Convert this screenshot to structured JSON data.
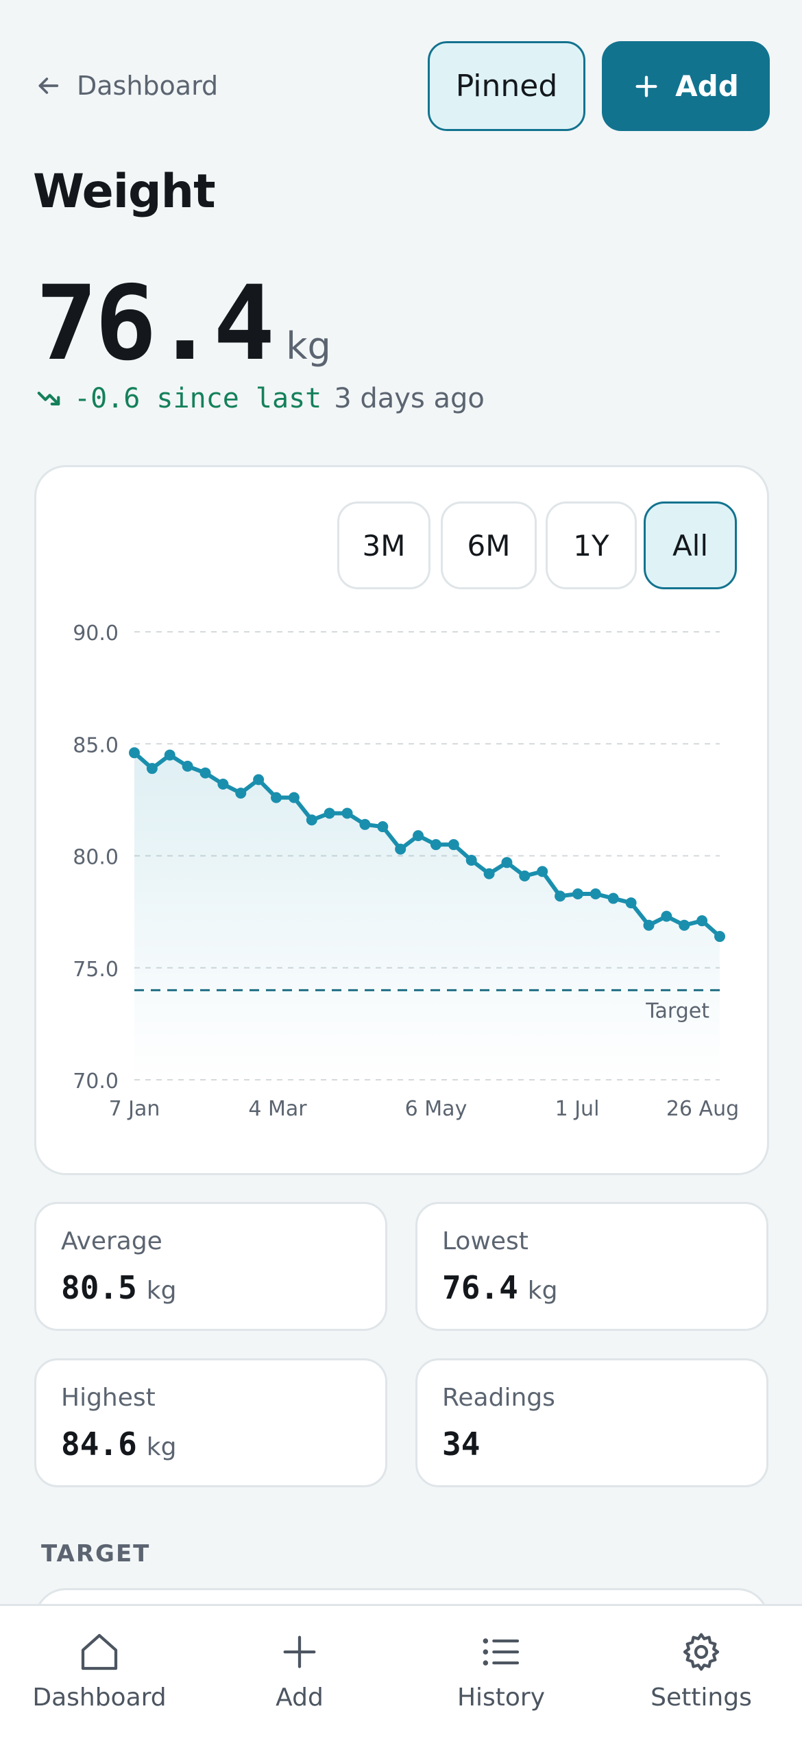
{
  "header": {
    "back_label": "Dashboard",
    "pinned_label": "Pinned",
    "add_label": "Add"
  },
  "page_title": "Weight",
  "current": {
    "value": "76.4",
    "unit": "kg",
    "delta": "-0.6 since last",
    "delta_time": "3 days ago"
  },
  "ranges": [
    {
      "label": "3M",
      "active": false
    },
    {
      "label": "6M",
      "active": false
    },
    {
      "label": "1Y",
      "active": false
    },
    {
      "label": "All",
      "active": true
    }
  ],
  "chart_data": {
    "type": "area",
    "x_ticks": [
      "7 Jan",
      "4 Mar",
      "6 May",
      "1 Jul",
      "26 Aug"
    ],
    "y_ticks": [
      "70.0",
      "75.0",
      "80.0",
      "85.0",
      "90.0"
    ],
    "ylim": [
      70,
      90
    ],
    "grid": true,
    "target": {
      "value": 74.0,
      "label": "Target"
    },
    "series": [
      {
        "values": [
          84.6,
          83.9,
          84.5,
          84.0,
          83.7,
          83.2,
          82.8,
          83.4,
          82.6,
          82.6,
          81.6,
          81.9,
          81.9,
          81.4,
          81.3,
          80.3,
          80.9,
          80.5,
          80.5,
          79.8,
          79.2,
          79.7,
          79.1,
          79.3,
          78.2,
          78.3,
          78.3,
          78.1,
          77.9,
          76.9,
          77.3,
          76.9,
          77.1,
          76.4
        ]
      }
    ],
    "colors": {
      "line": "#1a8fad",
      "target": "#1f6f84",
      "grid": "#d4d9dc"
    }
  },
  "stats": [
    {
      "label": "Average",
      "value": "80.5",
      "unit": "kg"
    },
    {
      "label": "Lowest",
      "value": "76.4",
      "unit": "kg"
    },
    {
      "label": "Highest",
      "value": "84.6",
      "unit": "kg"
    },
    {
      "label": "Readings",
      "value": "34",
      "unit": ""
    }
  ],
  "section_target": "TARGET",
  "tabbar": [
    {
      "label": "Dashboard",
      "icon": "home-icon"
    },
    {
      "label": "Add",
      "icon": "plus-icon"
    },
    {
      "label": "History",
      "icon": "list-icon"
    },
    {
      "label": "Settings",
      "icon": "gear-icon"
    }
  ]
}
